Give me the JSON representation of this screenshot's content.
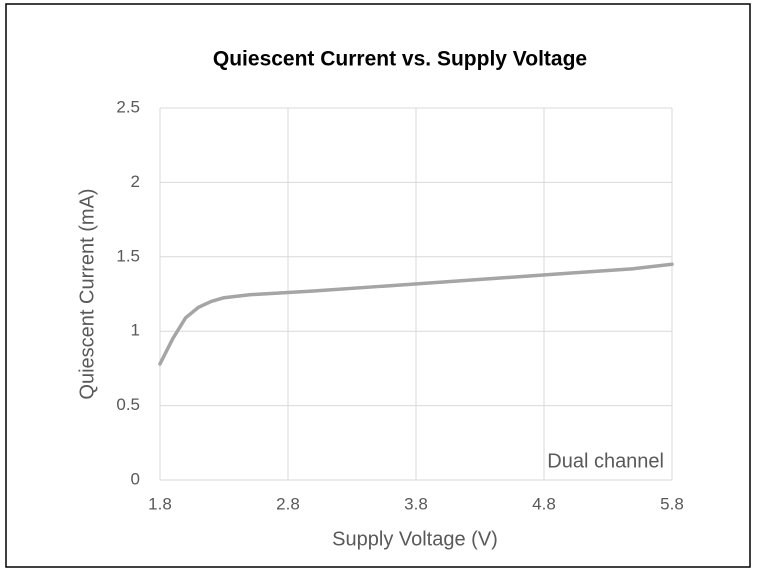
{
  "chart_data": {
    "type": "line",
    "title": "Quiescent Current vs. Supply Voltage",
    "x_label": "Supply Voltage (V)",
    "y_label": "Quiescent Current (mA)",
    "annotation": "Dual channel",
    "x": [
      1.8,
      1.9,
      2.0,
      2.1,
      2.2,
      2.3,
      2.5,
      2.8,
      3.0,
      3.5,
      4.0,
      4.5,
      5.0,
      5.5,
      5.8
    ],
    "series": [
      {
        "name": "Dual channel",
        "color": "#a5a5a5",
        "values": [
          0.78,
          0.95,
          1.09,
          1.16,
          1.2,
          1.225,
          1.245,
          1.26,
          1.27,
          1.3,
          1.33,
          1.36,
          1.39,
          1.42,
          1.45
        ]
      }
    ],
    "xlim": [
      1.8,
      5.8
    ],
    "xticks": [
      1.8,
      2.8,
      3.8,
      4.8,
      5.8
    ],
    "ylim": [
      0,
      2.5
    ],
    "yticks": [
      0,
      0.5,
      1,
      1.5,
      2,
      2.5
    ],
    "grid": true
  }
}
